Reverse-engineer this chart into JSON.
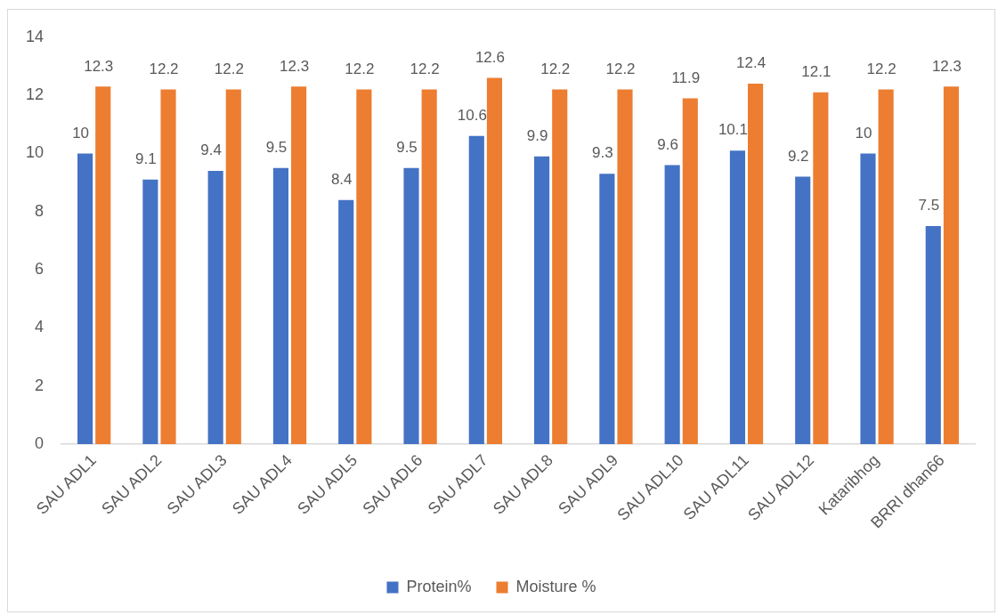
{
  "chart_data": {
    "type": "bar",
    "categories": [
      "SAU ADL1",
      "SAU ADL2",
      "SAU ADL3",
      "SAU ADL4",
      "SAU ADL5",
      "SAU ADL6",
      "SAU ADL7",
      "SAU ADL8",
      "SAU ADL9",
      "SAU ADL10",
      "SAU ADL11",
      "SAU ADL12",
      "Kataribhog",
      "BRRI dhan66"
    ],
    "series": [
      {
        "name": "Protein%",
        "color": "#4472c4",
        "values": [
          10,
          9.1,
          9.4,
          9.5,
          8.4,
          9.5,
          10.6,
          9.9,
          9.3,
          9.6,
          10.1,
          9.2,
          10,
          7.5
        ]
      },
      {
        "name": "Moisture %",
        "color": "#ed7d31",
        "values": [
          12.3,
          12.2,
          12.2,
          12.3,
          12.2,
          12.2,
          12.6,
          12.2,
          12.2,
          11.9,
          12.4,
          12.1,
          12.2,
          12.3
        ]
      }
    ],
    "ylim": [
      0,
      14
    ],
    "yticks": [
      0,
      2,
      4,
      6,
      8,
      10,
      12,
      14
    ],
    "grid": false,
    "legend": "bottom",
    "data_labels": true
  }
}
